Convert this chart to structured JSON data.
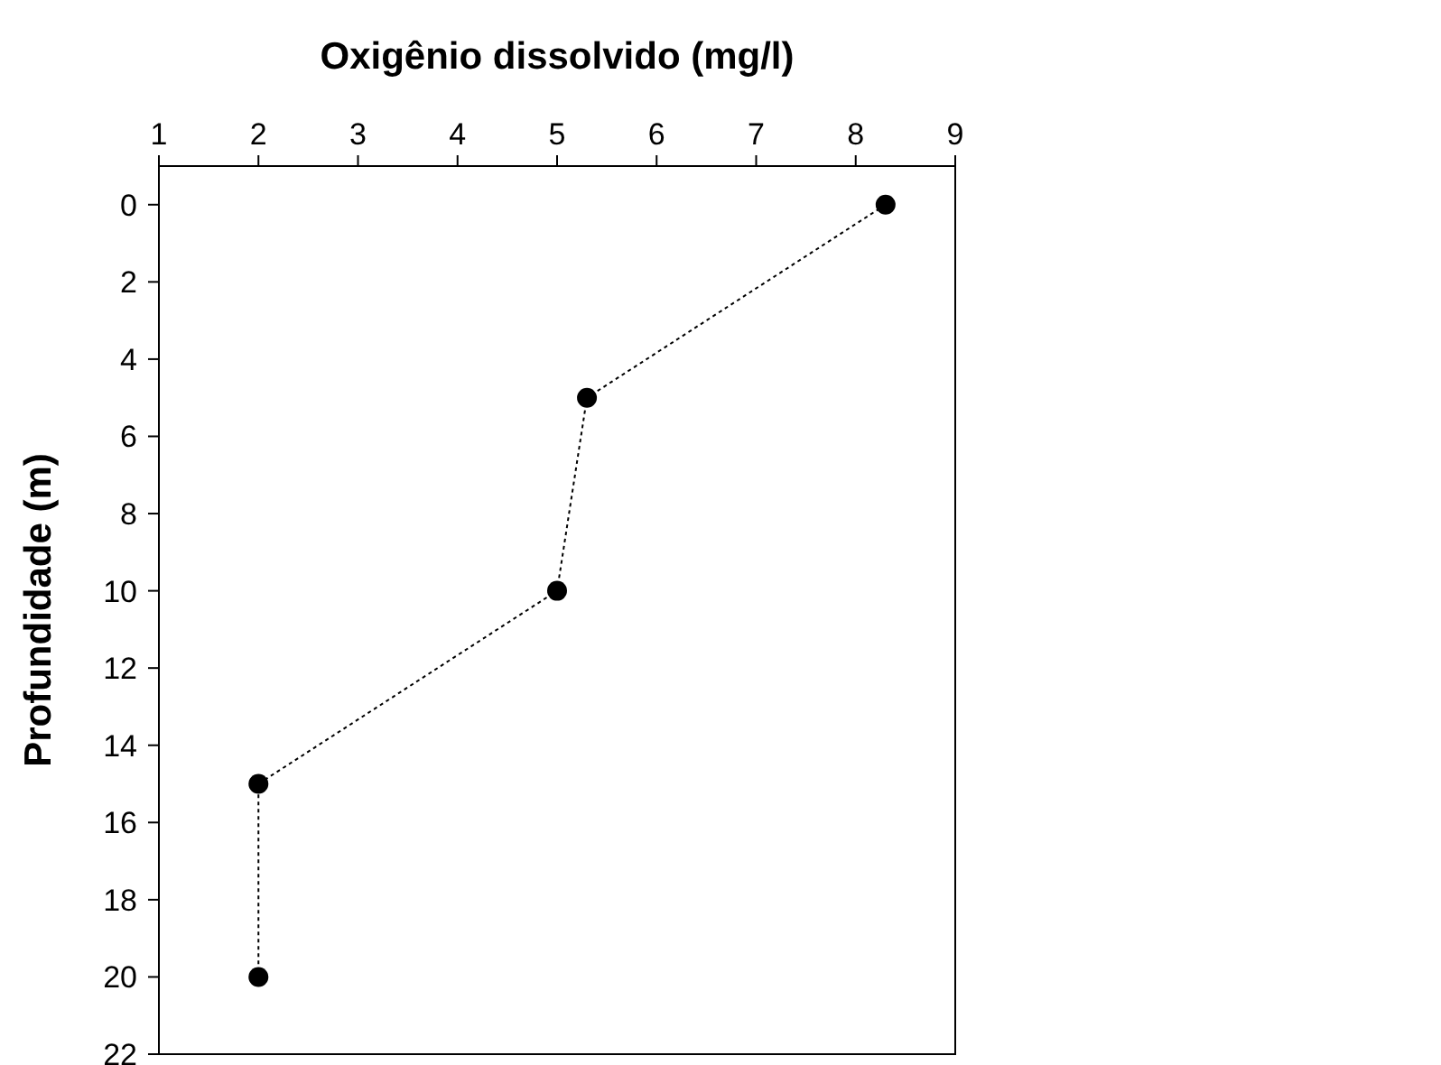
{
  "chart_data": {
    "type": "line",
    "xlabel": "Oxigênio dissolvido (mg/l)",
    "ylabel": "Profundidade (m)",
    "x": [
      8.3,
      5.3,
      5.0,
      2.0,
      2.0
    ],
    "series": [
      {
        "color": "#000000",
        "values": [
          0,
          5,
          10,
          15,
          20
        ]
      }
    ],
    "xlim": [
      1,
      9
    ],
    "xticks": [
      1,
      2,
      3,
      4,
      5,
      6,
      7,
      8,
      9
    ],
    "ylim": [
      22,
      -1
    ],
    "yticks": [
      0,
      2,
      4,
      6,
      8,
      10,
      12,
      14,
      16,
      18,
      20,
      22
    ],
    "grid": false,
    "marker": "circle",
    "line_style": "dotted"
  }
}
